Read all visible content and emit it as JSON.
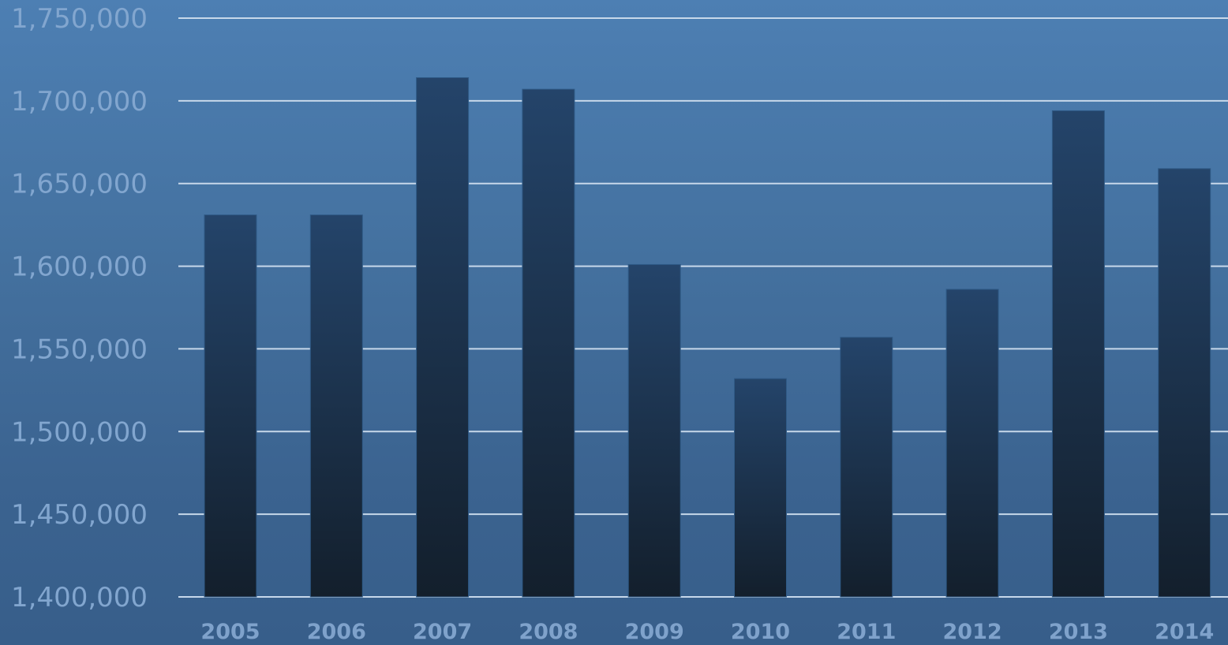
{
  "chart_data": {
    "type": "bar",
    "categories": [
      "2005",
      "2006",
      "2007",
      "2008",
      "2009",
      "2010",
      "2011",
      "2012",
      "2013",
      "2014"
    ],
    "values": [
      1631000,
      1631000,
      1714000,
      1707000,
      1601000,
      1532000,
      1557000,
      1586000,
      1694000,
      1659000
    ],
    "ylim": [
      1400000,
      1750000
    ],
    "yticks": [
      "1,400,000",
      "1,450,000",
      "1,500,000",
      "1,550,000",
      "1,600,000",
      "1,650,000",
      "1,700,000",
      "1,750,000"
    ],
    "ytick_values": [
      1400000,
      1450000,
      1500000,
      1550000,
      1600000,
      1650000,
      1700000,
      1750000
    ],
    "grid": true,
    "colors": {
      "bar_top": "#24446a",
      "bar_bottom": "#131f2c",
      "grid": "#c7d8ea",
      "tick_label": "#82a6cf"
    }
  }
}
